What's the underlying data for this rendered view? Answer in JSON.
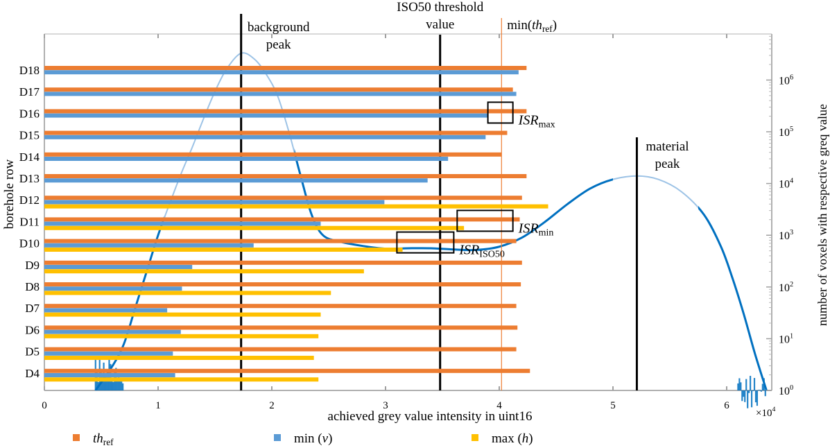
{
  "chart_data": {
    "type": "bar",
    "orientation": "horizontal",
    "title": "",
    "xlabel": "achieved grey value intensity in uint16",
    "x_multiplier": "×10^4",
    "xlim": [
      0,
      6.5
    ],
    "x_ticks": [
      "0",
      "1",
      "2",
      "3",
      "4",
      "5",
      "6"
    ],
    "ylabel": "borehole row",
    "ylabel_right": "number of voxels with respective greq value",
    "y_right_scale": "log",
    "y_right_lim": [
      1,
      8000000
    ],
    "y_right_ticks": [
      "10^0",
      "10^1",
      "10^2",
      "10^3",
      "10^4",
      "10^5",
      "10^6"
    ],
    "categories": [
      "D18",
      "D17",
      "D16",
      "D15",
      "D14",
      "D13",
      "D12",
      "D11",
      "D10",
      "D9",
      "D8",
      "D7",
      "D6",
      "D5",
      "D4"
    ],
    "series": [
      {
        "name": "th_ref",
        "label_main": "th",
        "label_sub": "ref",
        "color": "#ED7D31",
        "values": [
          4.24,
          4.12,
          4.24,
          4.07,
          4.02,
          4.24,
          4.2,
          4.18,
          4.15,
          4.2,
          4.19,
          4.15,
          4.16,
          4.15,
          4.27
        ]
      },
      {
        "name": "min (v)",
        "label_main": "min (",
        "label_var": "v",
        "label_end": ")",
        "color": "#5B9BD5",
        "values": [
          4.17,
          4.15,
          3.9,
          3.88,
          3.55,
          3.37,
          2.99,
          2.43,
          1.84,
          1.3,
          1.21,
          1.08,
          1.2,
          1.13,
          1.15
        ]
      },
      {
        "name": "max (h)",
        "label_main": "max (",
        "label_var": "h",
        "label_end": ")",
        "color": "#FFC000",
        "values": [
          null,
          null,
          null,
          null,
          null,
          null,
          4.43,
          3.69,
          3.15,
          2.81,
          2.52,
          2.43,
          2.41,
          2.37,
          2.41
        ]
      }
    ],
    "histogram": {
      "name": "grey value histogram",
      "color": "#0070C0",
      "points": [
        [
          0.45,
          1
        ],
        [
          0.6,
          3
        ],
        [
          0.7,
          8
        ],
        [
          0.8,
          40
        ],
        [
          0.9,
          200
        ],
        [
          1.0,
          1000
        ],
        [
          1.1,
          4000
        ],
        [
          1.2,
          15000
        ],
        [
          1.3,
          50000
        ],
        [
          1.4,
          180000
        ],
        [
          1.5,
          600000
        ],
        [
          1.6,
          1600000
        ],
        [
          1.73,
          3300000
        ],
        [
          1.85,
          2500000
        ],
        [
          1.95,
          1300000
        ],
        [
          2.05,
          500000
        ],
        [
          2.15,
          100000
        ],
        [
          2.25,
          15000
        ],
        [
          2.35,
          2500
        ],
        [
          2.45,
          1000
        ],
        [
          2.6,
          750
        ],
        [
          2.8,
          620
        ],
        [
          3.0,
          550
        ],
        [
          3.2,
          560
        ],
        [
          3.4,
          560
        ],
        [
          3.6,
          530
        ],
        [
          3.8,
          520
        ],
        [
          4.0,
          600
        ],
        [
          4.2,
          900
        ],
        [
          4.4,
          1800
        ],
        [
          4.6,
          4000
        ],
        [
          4.8,
          8000
        ],
        [
          5.0,
          12000
        ],
        [
          5.21,
          14000
        ],
        [
          5.4,
          12000
        ],
        [
          5.6,
          7000
        ],
        [
          5.8,
          2500
        ],
        [
          5.95,
          600
        ],
        [
          6.05,
          150
        ],
        [
          6.15,
          30
        ],
        [
          6.25,
          5
        ],
        [
          6.35,
          1
        ]
      ]
    },
    "vertical_lines": [
      {
        "name": "background peak",
        "x": 1.73,
        "label_lines": [
          "background",
          "peak"
        ],
        "color": "#000000"
      },
      {
        "name": "ISO50 threshold value",
        "x": 3.48,
        "label_lines": [
          "ISO50 threshold",
          "value"
        ],
        "color": "#000000"
      },
      {
        "name": "min(th_ref)",
        "x": 4.02,
        "label_main": "min(",
        "label_var": "th",
        "label_sub": "ref",
        "label_end": ")",
        "color": "#ED7D31"
      },
      {
        "name": "material peak",
        "x": 5.21,
        "label_lines": [
          "material",
          "peak"
        ],
        "color": "#000000"
      }
    ],
    "annotations": [
      {
        "name": "ISR_max",
        "label_main": "ISR",
        "label_sub": "max",
        "x_range": [
          3.9,
          4.12
        ],
        "row": "D16"
      },
      {
        "name": "ISR_min",
        "label_main": "ISR",
        "label_sub": "min",
        "x_range": [
          3.63,
          4.12
        ],
        "row": "D11"
      },
      {
        "name": "ISR_ISO50",
        "label_main": "ISR",
        "label_sub": "ISO50",
        "x_range": [
          3.1,
          3.6
        ],
        "row": "D10"
      }
    ],
    "legend": {
      "placement": "bottom",
      "items": [
        "th_ref",
        "min (v)",
        "max (h)"
      ]
    }
  }
}
